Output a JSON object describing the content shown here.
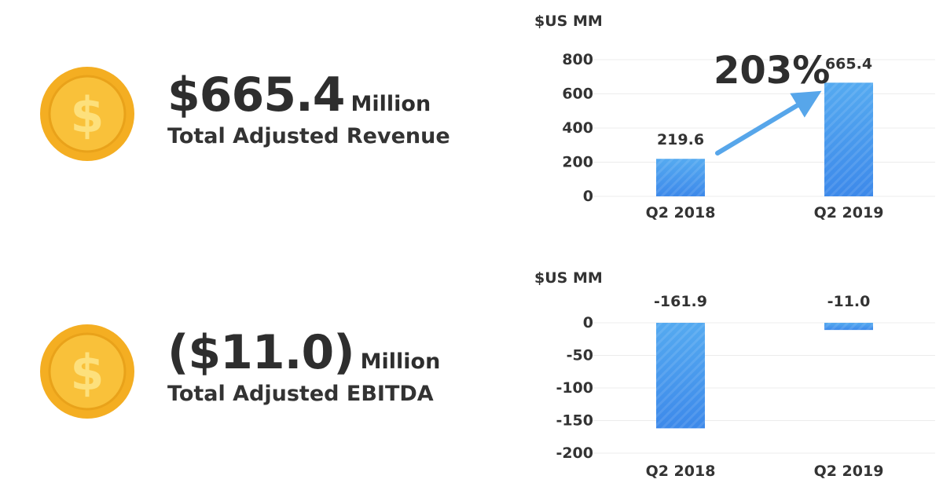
{
  "kpis": [
    {
      "value": "$665.4",
      "unit": "Million",
      "label": "Total Adjusted Revenue"
    },
    {
      "value": "($11.0)",
      "unit": "Million",
      "label": "Total Adjusted EBITDA"
    }
  ],
  "colors": {
    "bar": "#3d89ea",
    "bar_light": "#55aaf0",
    "arrow": "#57a6ea",
    "coin_outer": "#f6b327",
    "coin_inner": "#f9c43c",
    "symbol": "#fde07c"
  },
  "icon": "dollar-coin-icon",
  "chart_data": [
    {
      "type": "bar",
      "ylabel": "$US MM",
      "categories": [
        "Q2 2018",
        "Q2 2019"
      ],
      "values": [
        219.6,
        665.4
      ],
      "value_labels": [
        "219.6",
        "665.4"
      ],
      "y_ticks": [
        0,
        200,
        400,
        600,
        800
      ],
      "ylim": [
        0,
        800
      ],
      "grid": true,
      "annotation": {
        "text": "203%",
        "arrow_from": "Q2 2018",
        "arrow_to": "Q2 2019"
      }
    },
    {
      "type": "bar",
      "ylabel": "$US MM",
      "categories": [
        "Q2 2018",
        "Q2 2019"
      ],
      "values": [
        -161.9,
        -11.0
      ],
      "value_labels": [
        "-161.9",
        "-11.0"
      ],
      "y_ticks": [
        0,
        -50,
        -100,
        -150,
        -200
      ],
      "ylim": [
        -200,
        0
      ],
      "grid": true
    }
  ]
}
